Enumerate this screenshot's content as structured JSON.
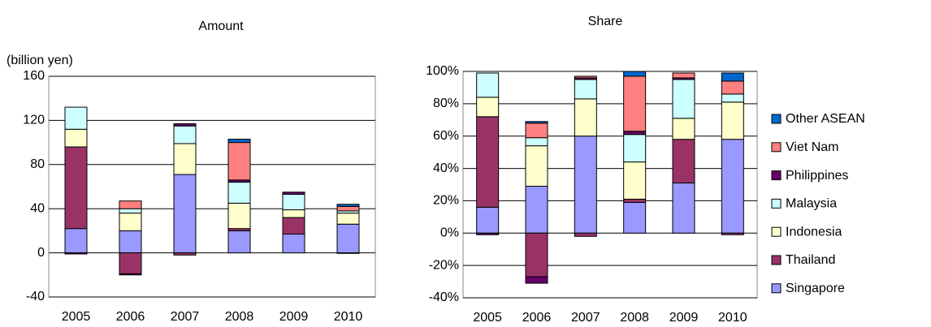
{
  "chart_data": [
    {
      "type": "bar",
      "stacked": true,
      "title": "Amount",
      "ylabel": "(billion yen)",
      "categories": [
        "2005",
        "2006",
        "2007",
        "2008",
        "2009",
        "2010"
      ],
      "ylim": [
        -40,
        160
      ],
      "yticks": [
        -40,
        0,
        40,
        80,
        120,
        160
      ],
      "grid": true,
      "legend": false,
      "series": [
        {
          "color": "#9999ff",
          "values": [
            22,
            20,
            71,
            20,
            17,
            26
          ]
        },
        {
          "color": "#993366",
          "values": [
            74,
            -19,
            -2,
            2,
            15,
            -0.5
          ]
        },
        {
          "color": "#ffffcc",
          "values": [
            16,
            16,
            28,
            23,
            7,
            10
          ]
        },
        {
          "color": "#ccffff",
          "values": [
            20,
            4,
            16,
            19,
            14,
            2
          ]
        },
        {
          "color": "#660066",
          "values": [
            -1,
            -1,
            2,
            2,
            2,
            0
          ]
        },
        {
          "color": "#ff8080",
          "values": [
            0,
            7,
            0,
            34,
            0,
            4
          ]
        },
        {
          "color": "#0066cc",
          "values": [
            0,
            0,
            0,
            3,
            0,
            2
          ]
        }
      ]
    },
    {
      "type": "bar",
      "stacked": true,
      "title": "Share",
      "categories": [
        "2005",
        "2006",
        "2007",
        "2008",
        "2009",
        "2010"
      ],
      "ylim": [
        -40,
        100
      ],
      "yticks": [
        {
          "value": -40,
          "label": "-40%"
        },
        {
          "value": -20,
          "label": "-20%"
        },
        {
          "value": 0,
          "label": "0%"
        },
        {
          "value": 20,
          "label": "20%"
        },
        {
          "value": 40,
          "label": "40%"
        },
        {
          "value": 60,
          "label": "60%"
        },
        {
          "value": 80,
          "label": "80%"
        },
        {
          "value": 100,
          "label": "100%"
        }
      ],
      "grid": true,
      "legend": "right",
      "series": [
        {
          "name": "Singapore",
          "color": "#9999ff",
          "values": [
            16,
            29,
            60,
            19,
            31,
            58
          ]
        },
        {
          "name": "Thailand",
          "color": "#993366",
          "values": [
            56,
            -27,
            -2,
            2,
            27,
            -1
          ]
        },
        {
          "name": "Indonesia",
          "color": "#ffffcc",
          "values": [
            12,
            25,
            23,
            23,
            13,
            23
          ]
        },
        {
          "name": "Malaysia",
          "color": "#ccffff",
          "values": [
            15,
            5,
            12,
            17,
            24,
            5
          ]
        },
        {
          "name": "Philippines",
          "color": "#660066",
          "values": [
            -1,
            -4,
            1,
            2,
            1,
            0
          ]
        },
        {
          "name": "Viet Nam",
          "color": "#ff8080",
          "values": [
            0,
            9,
            1,
            34,
            3,
            8
          ]
        },
        {
          "name": "Other ASEAN",
          "color": "#0066cc",
          "values": [
            0,
            1,
            0,
            3,
            0,
            5
          ]
        }
      ]
    }
  ]
}
